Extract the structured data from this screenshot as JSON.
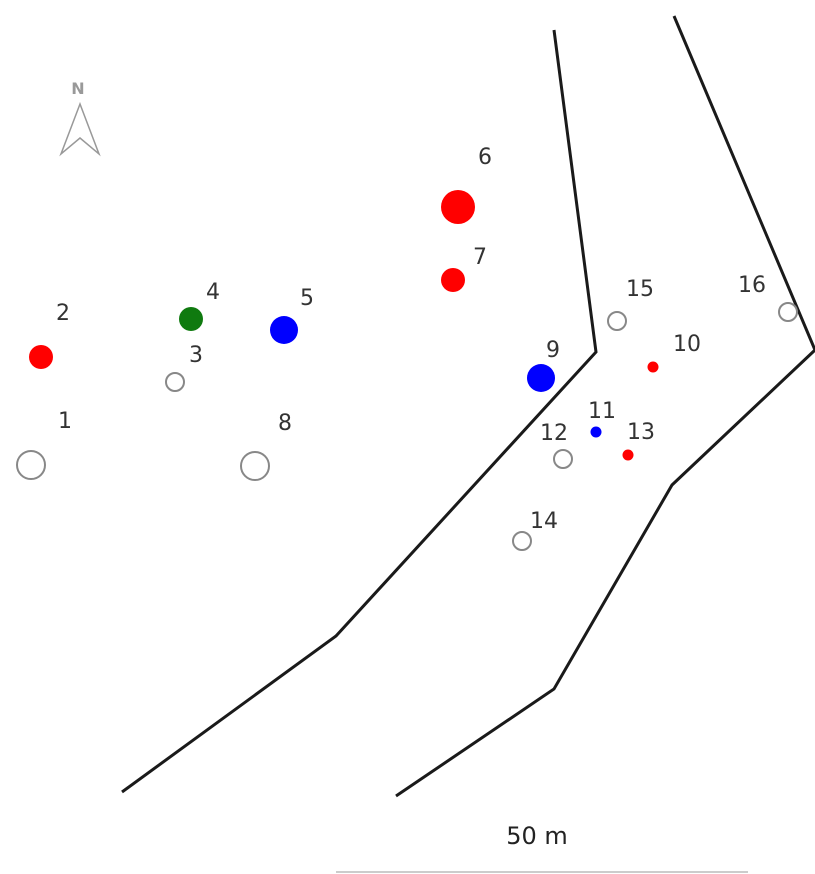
{
  "north_label": "N",
  "scale_label": "50 m",
  "colors": {
    "red": "#ff0000",
    "blue": "#0000ff",
    "green": "#0f7a0f",
    "hollow_stroke": "#888888",
    "river_line": "#1a1a1a"
  },
  "sites": [
    {
      "id": "1",
      "label": "1",
      "color": "hollow",
      "size": "large"
    },
    {
      "id": "2",
      "label": "2",
      "color": "red",
      "size": "medium"
    },
    {
      "id": "3",
      "label": "3",
      "color": "hollow",
      "size": "small"
    },
    {
      "id": "4",
      "label": "4",
      "color": "green",
      "size": "medium"
    },
    {
      "id": "5",
      "label": "5",
      "color": "blue",
      "size": "large"
    },
    {
      "id": "6",
      "label": "6",
      "color": "red",
      "size": "xlarge"
    },
    {
      "id": "7",
      "label": "7",
      "color": "red",
      "size": "medium"
    },
    {
      "id": "8",
      "label": "8",
      "color": "hollow",
      "size": "large"
    },
    {
      "id": "9",
      "label": "9",
      "color": "blue",
      "size": "large"
    },
    {
      "id": "10",
      "label": "10",
      "color": "red",
      "size": "tiny"
    },
    {
      "id": "11",
      "label": "11",
      "color": "blue",
      "size": "tiny"
    },
    {
      "id": "12",
      "label": "12",
      "color": "hollow",
      "size": "small"
    },
    {
      "id": "13",
      "label": "13",
      "color": "red",
      "size": "tiny"
    },
    {
      "id": "14",
      "label": "14",
      "color": "hollow",
      "size": "small"
    },
    {
      "id": "15",
      "label": "15",
      "color": "hollow",
      "size": "small"
    },
    {
      "id": "16",
      "label": "16",
      "color": "hollow",
      "size": "small"
    }
  ]
}
